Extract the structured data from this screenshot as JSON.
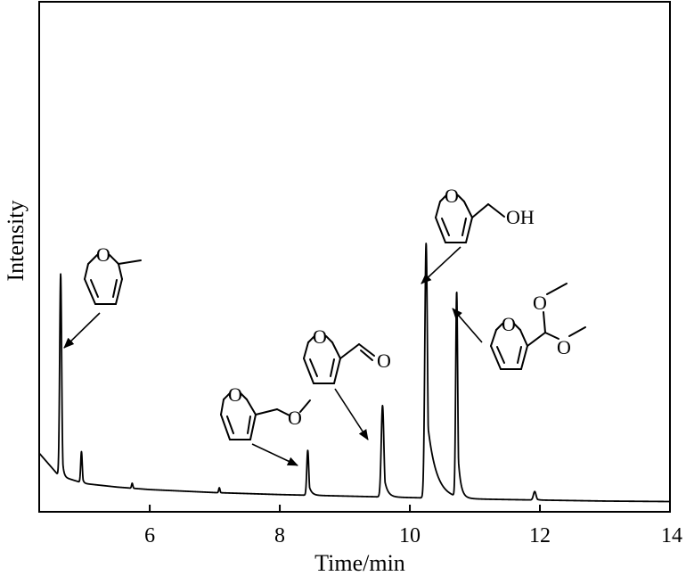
{
  "chart_data": {
    "type": "line",
    "title": "",
    "xlabel": "Time/min",
    "ylabel": "Intensity",
    "xlim": [
      4.3,
      14
    ],
    "ylim": [
      0,
      100
    ],
    "x_ticks": [
      6,
      8,
      10,
      12,
      14
    ],
    "y_ticks_shown": false,
    "grid": false,
    "baseline": [
      {
        "x": 4.3,
        "y": 10.5
      },
      {
        "x": 4.5,
        "y": 7.5
      },
      {
        "x": 4.6,
        "y": 6.0
      },
      {
        "x": 5.0,
        "y": 4.4
      },
      {
        "x": 5.5,
        "y": 3.7
      },
      {
        "x": 6.0,
        "y": 3.2
      },
      {
        "x": 7.0,
        "y": 2.6
      },
      {
        "x": 8.0,
        "y": 2.2
      },
      {
        "x": 9.0,
        "y": 1.9
      },
      {
        "x": 10.0,
        "y": 1.6
      },
      {
        "x": 11.0,
        "y": 1.3
      },
      {
        "x": 12.0,
        "y": 1.1
      },
      {
        "x": 13.0,
        "y": 0.9
      },
      {
        "x": 14.0,
        "y": 0.8
      }
    ],
    "peaks": [
      {
        "time": 4.63,
        "height": 40.5,
        "width": 0.015,
        "tail": 0.02,
        "compound": "2-methylfuran"
      },
      {
        "time": 4.95,
        "height": 6.2,
        "width": 0.012,
        "tail": 0.02,
        "compound": ""
      },
      {
        "time": 5.73,
        "height": 1.0,
        "width": 0.01,
        "tail": 0.01,
        "compound": ""
      },
      {
        "time": 7.07,
        "height": 1.0,
        "width": 0.01,
        "tail": 0.01,
        "compound": ""
      },
      {
        "time": 8.43,
        "height": 9.0,
        "width": 0.015,
        "tail": 0.04,
        "compound": "furfuryl methyl ether"
      },
      {
        "time": 9.58,
        "height": 18.3,
        "width": 0.02,
        "tail": 0.05,
        "compound": "furfural"
      },
      {
        "time": 10.25,
        "height": 51.0,
        "width": 0.02,
        "tail": 0.13,
        "compound": "furfuryl alcohol"
      },
      {
        "time": 10.72,
        "height": 41.0,
        "width": 0.015,
        "tail": 0.04,
        "compound": "furfural dimethyl acetal"
      },
      {
        "time": 11.92,
        "height": 1.7,
        "width": 0.02,
        "tail": 0.03,
        "compound": ""
      }
    ],
    "annotations": [
      {
        "name": "2-methylfuran",
        "atoms": [
          "O"
        ],
        "points_to_time": 4.63
      },
      {
        "name": "furfuryl methyl ether",
        "atoms": [
          "O",
          "O"
        ],
        "points_to_time": 8.43
      },
      {
        "name": "furfural",
        "atoms": [
          "O",
          "O"
        ],
        "points_to_time": 9.58
      },
      {
        "name": "furfuryl alcohol",
        "atoms": [
          "O",
          "OH"
        ],
        "points_to_time": 10.25
      },
      {
        "name": "furfural dimethyl acetal",
        "atoms": [
          "O",
          "O",
          "O"
        ],
        "points_to_time": 10.72
      }
    ]
  }
}
